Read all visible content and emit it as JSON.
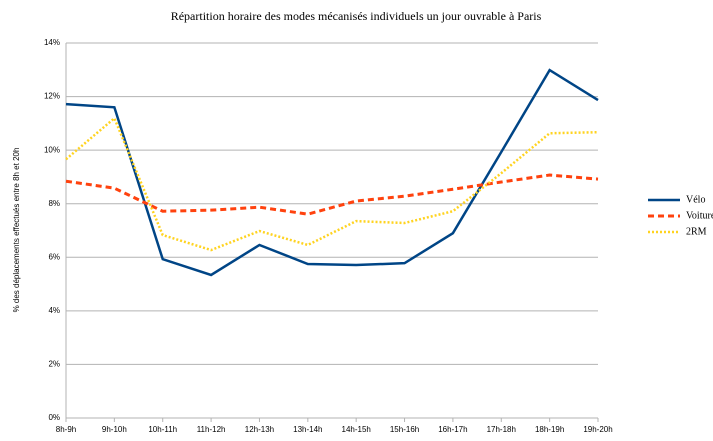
{
  "chart_data": {
    "type": "line",
    "title": "Répartition horaire des modes mécanisés individuels un jour ouvrable à Paris",
    "y_label": "% des déplacements effectués entre 8h et 20h",
    "categories": [
      "8h-9h",
      "9h-10h",
      "10h-11h",
      "11h-12h",
      "12h-13h",
      "13h-14h",
      "14h-15h",
      "15h-16h",
      "16h-17h",
      "17h-18h",
      "18h-19h",
      "19h-20h"
    ],
    "series": [
      {
        "name": "Vélo",
        "color": "#004586",
        "dash": "solid",
        "values": [
          11.72,
          11.6,
          5.93,
          5.34,
          6.46,
          5.75,
          5.71,
          5.78,
          6.9,
          9.93,
          12.99,
          11.87
        ]
      },
      {
        "name": "Voiture",
        "color": "#ff420e",
        "dash": "dashed",
        "values": [
          8.84,
          8.58,
          7.72,
          7.76,
          7.87,
          7.61,
          8.1,
          8.28,
          8.54,
          8.81,
          9.07,
          8.92
        ]
      },
      {
        "name": "2RM",
        "color": "#ffd320",
        "dash": "dotted",
        "values": [
          9.66,
          11.19,
          6.83,
          6.27,
          6.98,
          6.46,
          7.35,
          7.28,
          7.72,
          9.14,
          10.63,
          10.67
        ]
      }
    ],
    "ylim": [
      0,
      14
    ],
    "yticks": [
      {
        "value": 0,
        "label": "0%"
      },
      {
        "value": 2,
        "label": "2%"
      },
      {
        "value": 4,
        "label": "4%"
      },
      {
        "value": 6,
        "label": "6%"
      },
      {
        "value": 8,
        "label": "8%"
      },
      {
        "value": 10,
        "label": "10%"
      },
      {
        "value": 12,
        "label": "12%"
      },
      {
        "value": 14,
        "label": "14%"
      }
    ],
    "grid": true,
    "legend": "right"
  }
}
